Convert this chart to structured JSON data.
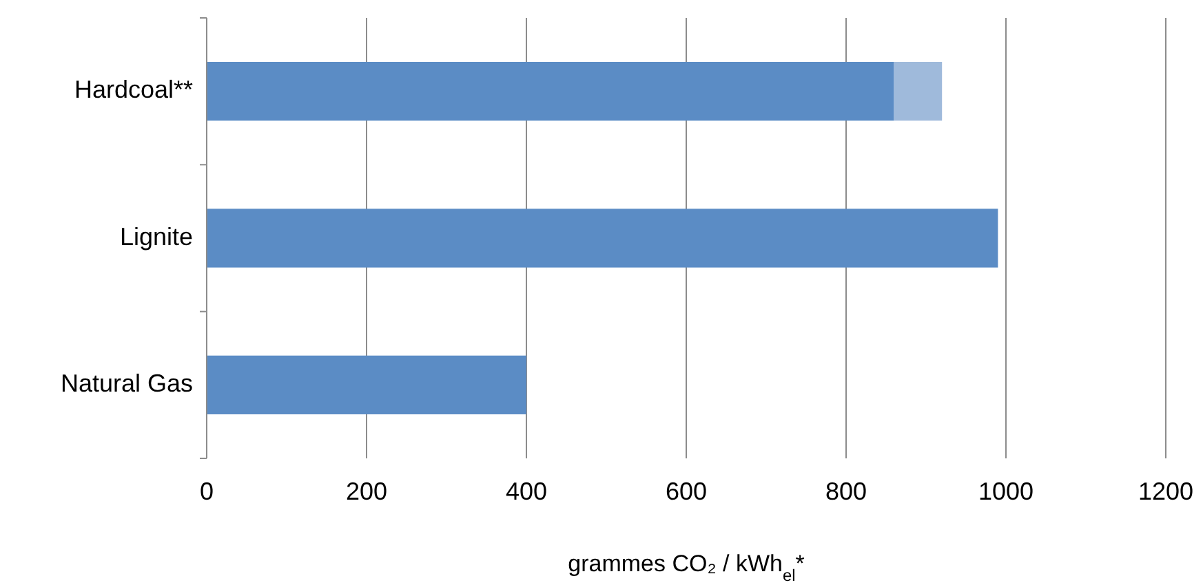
{
  "chart_data": {
    "type": "bar",
    "orientation": "horizontal",
    "stacked": true,
    "categories": [
      "Hardcoal**",
      "Lignite",
      "Natural Gas"
    ],
    "series": [
      {
        "color": "#5b8cc5",
        "values": [
          860,
          990,
          400
        ]
      },
      {
        "color": "#9fbadb",
        "values": [
          60,
          null,
          null
        ]
      }
    ],
    "xlim": [
      0,
      1200
    ],
    "xticks": [
      0,
      200,
      400,
      600,
      800,
      1000,
      1200
    ],
    "grid": "x",
    "xlabel": "grammes CO₂ / kWh$_{el}$*"
  }
}
